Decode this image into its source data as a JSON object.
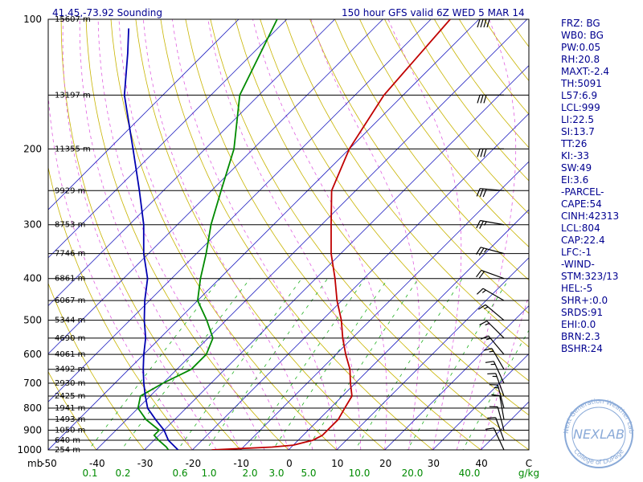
{
  "header": {
    "location": "41.45,-73.92 Sounding",
    "valid": "150 hour GFS valid 6Z WED  5 MAR 14"
  },
  "stats": [
    "FRZ: BG",
    "WB0: BG",
    "PW:0.05",
    "RH:20.8",
    "MAXT:-2.4",
    "TH:5091",
    "L57:6.9",
    "LCL:999",
    "LI:22.5",
    "SI:13.7",
    "TT:26",
    "KI:-33",
    "SW:49",
    "EI:3.6",
    "-PARCEL-",
    "CAPE:54",
    "CINH:42313",
    "LCL:804",
    "CAP:22.4",
    "LFC:-1",
    "-WIND-",
    "STM:323/13",
    "HEL:-5",
    "SHR+:0.0",
    "SRDS:91",
    "EHI:0.0",
    "BRN:2.3",
    "BSHR:24"
  ],
  "logo": {
    "main": "NEXLAB",
    "ring_top": "Next Generation Weather Lab",
    "ring_bottom": "College of DuPage"
  },
  "chart_data": {
    "type": "line",
    "title": "41.45,-73.92 Sounding",
    "subtitle": "150 hour GFS valid 6Z WED  5 MAR 14",
    "x_axis": {
      "unit_label": "C",
      "left_label": "mb",
      "ticks": [
        "-50",
        "-40",
        "-30",
        "-20",
        "-10",
        "0",
        "10",
        "20",
        "30",
        "40"
      ],
      "xlim": [
        -50,
        50
      ]
    },
    "y_axis": {
      "scale": "log",
      "reversed": true,
      "ylim": [
        100,
        1000
      ],
      "ticks": [
        "100",
        "200",
        "300",
        "400",
        "500",
        "600",
        "700",
        "800",
        "900",
        "1000"
      ]
    },
    "mixing_ratio_ticks": {
      "unit_label": "g/kg",
      "labels": [
        "0.1",
        "0.2",
        "0.6",
        "1.0",
        "2.0",
        "3.0",
        "5.0",
        "10.0",
        "20.0",
        "40.0"
      ]
    },
    "height_labels": [
      {
        "p": 100,
        "label": "15607 m"
      },
      {
        "p": 150,
        "label": "13197 m"
      },
      {
        "p": 200,
        "label": "11355 m"
      },
      {
        "p": 250,
        "label": "9929 m"
      },
      {
        "p": 300,
        "label": "8753 m"
      },
      {
        "p": 350,
        "label": "7746 m"
      },
      {
        "p": 400,
        "label": "6861 m"
      },
      {
        "p": 450,
        "label": "6067 m"
      },
      {
        "p": 500,
        "label": "5344 m"
      },
      {
        "p": 550,
        "label": "4690 m"
      },
      {
        "p": 600,
        "label": "4061 m"
      },
      {
        "p": 650,
        "label": "3492 m"
      },
      {
        "p": 700,
        "label": "2930 m"
      },
      {
        "p": 750,
        "label": "2425 m"
      },
      {
        "p": 800,
        "label": "1941 m"
      },
      {
        "p": 850,
        "label": "1493 m"
      },
      {
        "p": 900,
        "label": "1050 m"
      },
      {
        "p": 950,
        "label": "640 m"
      },
      {
        "p": 1000,
        "label": "254 m"
      }
    ],
    "series": [
      {
        "name": "temperature",
        "color": "#c00000",
        "points": [
          [
            1000,
            -16
          ],
          [
            985,
            -4
          ],
          [
            975,
            0
          ],
          [
            950,
            3
          ],
          [
            925,
            4
          ],
          [
            900,
            4
          ],
          [
            850,
            4
          ],
          [
            800,
            3
          ],
          [
            750,
            2
          ],
          [
            700,
            -1
          ],
          [
            650,
            -4
          ],
          [
            600,
            -8
          ],
          [
            550,
            -12
          ],
          [
            500,
            -16
          ],
          [
            450,
            -21
          ],
          [
            400,
            -26
          ],
          [
            350,
            -32
          ],
          [
            300,
            -38
          ],
          [
            250,
            -45
          ],
          [
            200,
            -50
          ],
          [
            150,
            -54
          ],
          [
            100,
            -56
          ]
        ]
      },
      {
        "name": "dewpoint",
        "color": "#008a00",
        "points": [
          [
            1000,
            -25
          ],
          [
            985,
            -26
          ],
          [
            950,
            -29
          ],
          [
            925,
            -31
          ],
          [
            900,
            -31
          ],
          [
            850,
            -36
          ],
          [
            800,
            -40
          ],
          [
            750,
            -42
          ],
          [
            700,
            -40
          ],
          [
            650,
            -37
          ],
          [
            600,
            -37
          ],
          [
            550,
            -39
          ],
          [
            500,
            -44
          ],
          [
            450,
            -50
          ],
          [
            400,
            -54
          ],
          [
            350,
            -58
          ],
          [
            300,
            -63
          ],
          [
            250,
            -68
          ],
          [
            200,
            -74
          ],
          [
            150,
            -84
          ],
          [
            100,
            -92
          ]
        ]
      },
      {
        "name": "wetbulb",
        "color": "#0000b0",
        "points": [
          [
            1000,
            -23
          ],
          [
            950,
            -27
          ],
          [
            900,
            -30
          ],
          [
            850,
            -34
          ],
          [
            800,
            -38
          ],
          [
            750,
            -41
          ],
          [
            700,
            -44
          ],
          [
            650,
            -47
          ],
          [
            600,
            -50
          ],
          [
            550,
            -53
          ],
          [
            500,
            -57
          ],
          [
            450,
            -61
          ],
          [
            400,
            -65
          ],
          [
            350,
            -71
          ],
          [
            300,
            -77
          ],
          [
            250,
            -85
          ],
          [
            200,
            -95
          ],
          [
            150,
            -108
          ],
          [
            120,
            -116
          ],
          [
            105,
            -121
          ]
        ]
      }
    ],
    "isotherms": [
      -100,
      -90,
      -80,
      -70,
      -60,
      -50,
      -40,
      -30,
      -20,
      -10,
      0,
      10,
      20,
      30,
      40
    ],
    "wind_barbs": [
      {
        "p": 100,
        "dir": 270,
        "spd": 40
      },
      {
        "p": 150,
        "dir": 270,
        "spd": 30
      },
      {
        "p": 200,
        "dir": 270,
        "spd": 30
      },
      {
        "p": 250,
        "dir": 275,
        "spd": 30
      },
      {
        "p": 300,
        "dir": 280,
        "spd": 25
      },
      {
        "p": 350,
        "dir": 285,
        "spd": 25
      },
      {
        "p": 400,
        "dir": 290,
        "spd": 20
      },
      {
        "p": 450,
        "dir": 300,
        "spd": 15
      },
      {
        "p": 500,
        "dir": 310,
        "spd": 15
      },
      {
        "p": 550,
        "dir": 315,
        "spd": 15
      },
      {
        "p": 600,
        "dir": 320,
        "spd": 15
      },
      {
        "p": 650,
        "dir": 330,
        "spd": 15
      },
      {
        "p": 700,
        "dir": 335,
        "spd": 15
      },
      {
        "p": 750,
        "dir": 340,
        "spd": 15
      },
      {
        "p": 800,
        "dir": 345,
        "spd": 15
      },
      {
        "p": 850,
        "dir": 350,
        "spd": 10
      },
      {
        "p": 900,
        "dir": 345,
        "spd": 10
      },
      {
        "p": 950,
        "dir": 340,
        "spd": 10
      },
      {
        "p": 1000,
        "dir": 335,
        "spd": 10
      }
    ]
  }
}
